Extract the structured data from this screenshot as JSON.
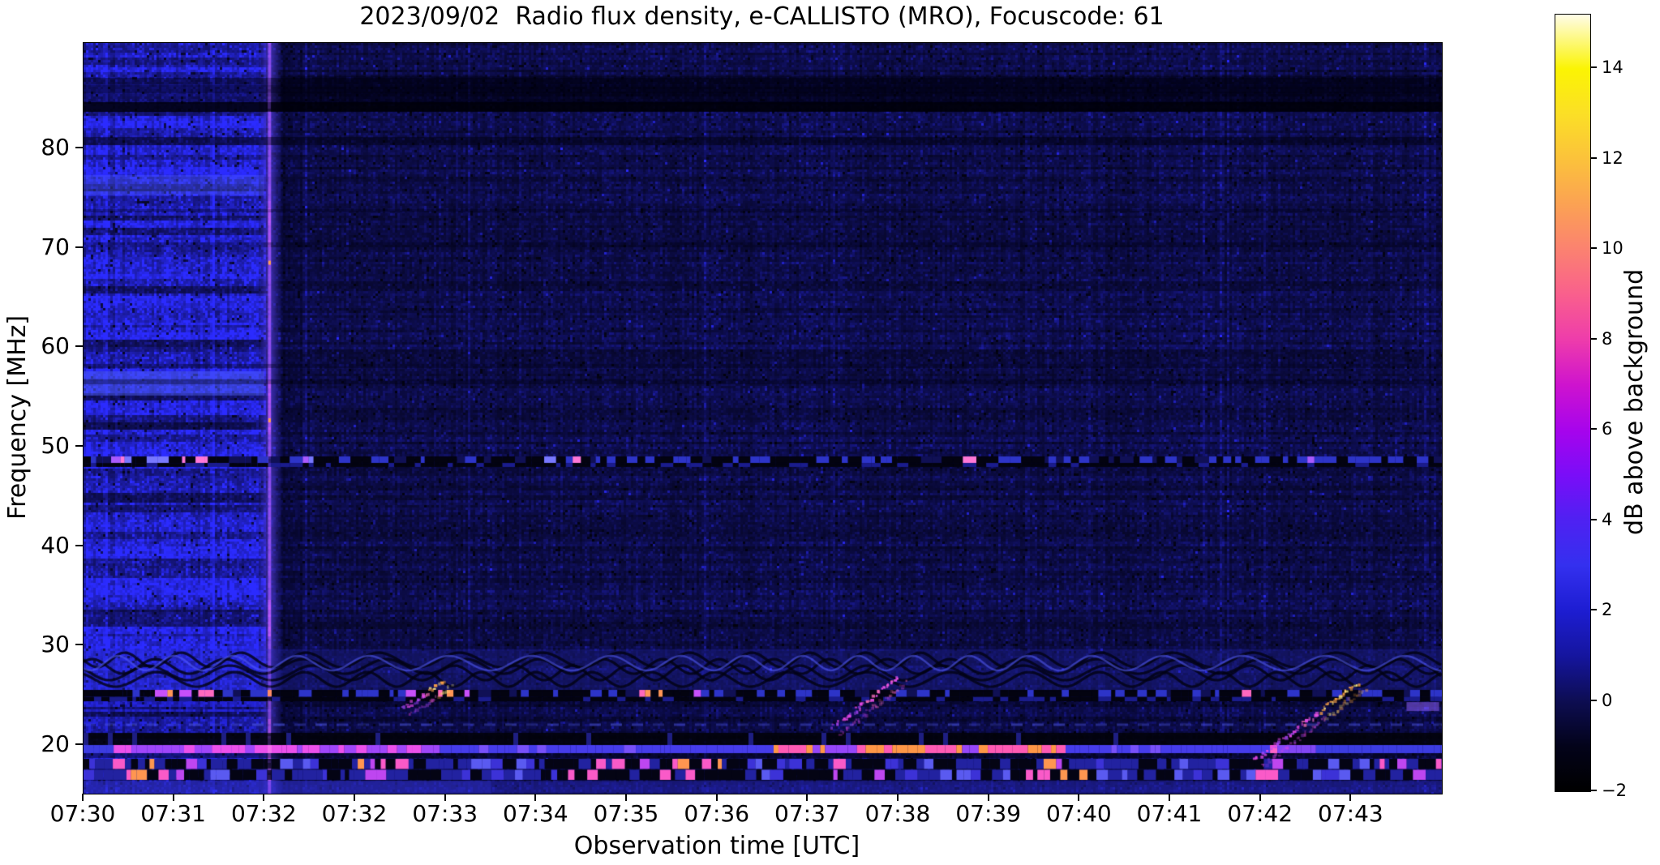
{
  "chart_data": {
    "type": "heatmap",
    "title": "2023/09/02  Radio flux density, e-CALLISTO (MRO), Focuscode: 61",
    "xlabel": "Observation time [UTC]",
    "ylabel": "Frequency [MHz]",
    "colorbar_label": "dB above background",
    "x_ticks": [
      "07:30",
      "07:31",
      "07:32",
      "07:32",
      "07:33",
      "07:34",
      "07:35",
      "07:36",
      "07:37",
      "07:38",
      "07:39",
      "07:40",
      "07:41",
      "07:42",
      "07:43"
    ],
    "y_ticks": [
      20,
      30,
      40,
      50,
      60,
      70,
      80
    ],
    "y_range_mhz": [
      15.1,
      90.6
    ],
    "x_range_utc": [
      "07:30",
      "07:45"
    ],
    "colorbar_ticks": [
      {
        "value": -2,
        "label": "−2"
      },
      {
        "value": 0,
        "label": "0"
      },
      {
        "value": 2,
        "label": "2"
      },
      {
        "value": 4,
        "label": "4"
      },
      {
        "value": 6,
        "label": "6"
      },
      {
        "value": 8,
        "label": "8"
      },
      {
        "value": 10,
        "label": "10"
      },
      {
        "value": 12,
        "label": "12"
      },
      {
        "value": 14,
        "label": "14"
      }
    ],
    "colorbar_range_db": [
      -2,
      15.2
    ],
    "grid": false,
    "legend": false,
    "colormap_stops": [
      [
        0.0,
        "#000000"
      ],
      [
        0.058,
        "#03031a"
      ],
      [
        0.116,
        "#0d0d52"
      ],
      [
        0.174,
        "#15159e"
      ],
      [
        0.233,
        "#1d1dd2"
      ],
      [
        0.291,
        "#3430ef"
      ],
      [
        0.349,
        "#4f21f2"
      ],
      [
        0.407,
        "#7a0df8"
      ],
      [
        0.465,
        "#a704ec"
      ],
      [
        0.523,
        "#ce13ce"
      ],
      [
        0.581,
        "#ee3cab"
      ],
      [
        0.639,
        "#f95f8d"
      ],
      [
        0.698,
        "#fb8270"
      ],
      [
        0.756,
        "#fba253"
      ],
      [
        0.814,
        "#fbc23b"
      ],
      [
        0.872,
        "#fbdf26"
      ],
      [
        0.93,
        "#fbf403"
      ],
      [
        1.0,
        "#fffce8"
      ]
    ],
    "palette": {
      "background_navy": "#0d0d4d",
      "left_region_blue": "#2020c8",
      "stripe_violet": "#9a50ff",
      "burst_magenta": "#e646e6",
      "burst_orange": "#ffa046",
      "burst_yellow": "#fff078",
      "hot_pink": "#ff5ab4",
      "deep_black": "#020212"
    },
    "features": {
      "left_region": {
        "x1": 0.1331,
        "gain": 2.2,
        "note": "brighter blue banded region 07:30–07:32"
      },
      "stripe": {
        "x": 0.1367,
        "time": "07:32",
        "hot_segments": [
          [
            0.21,
            0.27
          ],
          [
            0.45,
            0.52
          ],
          [
            0.74,
            0.79
          ],
          [
            0.9,
            1.0
          ]
        ],
        "orange_dots": [
          0.29,
          0.5
        ],
        "note": "full-height violet interference stripe"
      },
      "post_stripe_dark": {
        "alpha": 0.2
      },
      "right_dark_top": {
        "y0": 0.0443,
        "y1": 0.081,
        "alpha": 0.35
      },
      "top_dark_band": {
        "y0": 0.0464,
        "y1": 0.0907,
        "alpha": 0.45
      },
      "black_row": {
        "y0": 0.0788,
        "y1": 0.0918,
        "alpha": 0.8
      },
      "dark_lines": [
        [
          0.0561,
          0.0669,
          0.28
        ],
        [
          0.1253,
          0.1361,
          0.5
        ],
        [
          0.2213,
          0.2257,
          0.33
        ],
        [
          0.2656,
          0.2721,
          0.3
        ],
        [
          0.4276,
          0.433,
          0.35
        ],
        [
          0.4481,
          0.4546,
          0.35
        ]
      ],
      "left_bright_bands": [
        [
          0.4373,
          0.4697,
          0.5
        ],
        [
          0.176,
          0.203,
          0.35
        ]
      ],
      "line49": {
        "freq_mhz": 48.8,
        "y0": 0.5508,
        "y1": 0.5648,
        "bright_zones": [
          [
            0.02,
            0.1
          ],
          [
            0.145,
            0.175
          ],
          [
            0.33,
            0.37
          ],
          [
            0.63,
            0.67
          ],
          [
            0.9,
            0.93
          ]
        ]
      },
      "wavy": {
        "freq_mhz_range": [
          26.5,
          30.5
        ],
        "y0": 0.8078,
        "y1": 0.8618,
        "note": "fingerprint-like interference fringes"
      },
      "dotted25": {
        "freq_mhz": 25.5,
        "y0": 0.8618,
        "y1": 0.8769,
        "bright_zones": [
          [
            0.047,
            0.096
          ],
          [
            0.235,
            0.283
          ],
          [
            0.405,
            0.453
          ],
          [
            0.835,
            0.858
          ]
        ]
      },
      "mid_band": {
        "y0": 0.8769,
        "y1": 0.919
      },
      "black_band": {
        "freq_mhz": 21.3,
        "y0": 0.919,
        "y1": 0.9352
      },
      "bright_line": {
        "freq_mhz": 20.5,
        "y0": 0.9352,
        "y1": 0.946,
        "zones": [
          [
            0,
            0.017,
            "blue"
          ],
          [
            0.017,
            0.262,
            "magenta"
          ],
          [
            0.262,
            0.503,
            "violet"
          ],
          [
            0.503,
            0.717,
            "hot"
          ],
          [
            0.717,
            0.868,
            "violet"
          ],
          [
            0.868,
            0.907,
            "pink"
          ],
          [
            0.907,
            1,
            "blue"
          ]
        ]
      },
      "under_line_dark": {
        "y0": 0.946,
        "y1": 0.9526
      },
      "bottom_dots": {
        "freq_mhz_range": [
          17.2,
          18.8
        ],
        "y0": 0.9536,
        "y1": 0.9827,
        "bright_zones": [
          [
            0.005,
            0.08
          ],
          [
            0.19,
            0.23
          ],
          [
            0.355,
            0.48
          ],
          [
            0.54,
            0.59
          ],
          [
            0.685,
            0.74
          ],
          [
            0.86,
            0.9
          ],
          [
            0.965,
            1.0
          ]
        ]
      },
      "bottom_strip": {
        "y0": 0.9827,
        "y1": 1.0
      },
      "violet_patch": {
        "x0": 0.974,
        "x1": 0.998,
        "y0": 0.878,
        "y1": 0.89
      },
      "bursts": [
        {
          "x0": 0.2346,
          "y0": 0.8855,
          "x1": 0.2645,
          "y1": 0.8488,
          "hot": true,
          "time": "~07:33"
        },
        {
          "x0": 0.551,
          "y0": 0.9103,
          "x1": 0.5988,
          "y1": 0.8434,
          "hot": false,
          "time": "~07:37–07:38"
        },
        {
          "x0": 0.8615,
          "y0": 0.9536,
          "x1": 0.9373,
          "y1": 0.851,
          "hot": true,
          "time": "~07:42–07:43"
        }
      ]
    }
  }
}
